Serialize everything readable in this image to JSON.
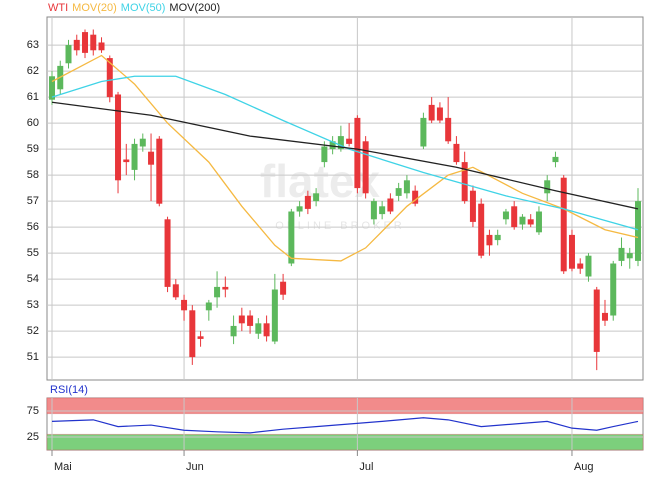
{
  "chart_data": [
    {
      "type": "candlestick",
      "legend": [
        {
          "name": "WTI",
          "color": "#e8363a"
        },
        {
          "name": "MOV(20)",
          "color": "#f5b942"
        },
        {
          "name": "MOV(50)",
          "color": "#3fd3e6"
        },
        {
          "name": "MOV(200)",
          "color": "#222222"
        }
      ],
      "watermark": "flatex",
      "watermark_sub": "ONLINE BROKER",
      "categories": [
        "Mai",
        null,
        null,
        null,
        null,
        null,
        null,
        null,
        null,
        null,
        null,
        null,
        null,
        null,
        null,
        null,
        "Jun",
        null,
        null,
        null,
        null,
        null,
        null,
        null,
        null,
        null,
        null,
        null,
        null,
        null,
        null,
        null,
        null,
        null,
        null,
        null,
        null,
        "Jul",
        null,
        null,
        null,
        null,
        null,
        null,
        null,
        null,
        null,
        null,
        null,
        null,
        null,
        null,
        null,
        null,
        null,
        null,
        null,
        null,
        null,
        null,
        null,
        null,
        null,
        "Aug",
        null,
        null,
        null,
        null,
        null,
        null,
        null,
        null
      ],
      "up_color": "#5cb85c",
      "down_color": "#e8363a",
      "series": [
        {
          "name": "WTI",
          "open": [
            60.9,
            61.3,
            62.3,
            63.2,
            63.5,
            63.4,
            63.1,
            62.5,
            61.1,
            58.6,
            58.2,
            59.1,
            58.9,
            59.4,
            56.3,
            53.8,
            53.2,
            52.8,
            51.8,
            52.8,
            53.3,
            53.7,
            51.8,
            52.6,
            52.6,
            51.9,
            52.3,
            51.6,
            53.9,
            54.6,
            56.6,
            57.2,
            57.0,
            58.5,
            59.0,
            59.0,
            59.4,
            60.2,
            59.3,
            56.3,
            56.5,
            57.1,
            57.2,
            57.3,
            57.4,
            59.1,
            60.7,
            60.6,
            60.2,
            59.2,
            58.5,
            57.4,
            56.9,
            55.7,
            55.5,
            56.3,
            56.8,
            56.1,
            56.3,
            55.8,
            57.3,
            58.5,
            57.9,
            55.7,
            54.6,
            54.1,
            53.6,
            52.7,
            52.6,
            54.7,
            54.8,
            54.7
          ],
          "high": [
            62.0,
            62.4,
            63.2,
            63.4,
            63.6,
            63.6,
            63.3,
            62.6,
            61.2,
            59.2,
            59.4,
            59.6,
            59.6,
            59.5,
            56.4,
            54.0,
            53.4,
            53.0,
            52.0,
            53.2,
            54.3,
            54.1,
            52.6,
            52.9,
            52.8,
            52.5,
            52.6,
            54.2,
            54.2,
            56.7,
            57.0,
            57.4,
            57.5,
            59.3,
            59.5,
            59.9,
            60.0,
            60.3,
            59.5,
            57.1,
            57.0,
            57.3,
            57.7,
            58.0,
            57.6,
            60.4,
            61.0,
            60.8,
            61.0,
            59.5,
            58.9,
            57.6,
            57.1,
            55.9,
            55.9,
            56.7,
            57.0,
            56.5,
            56.5,
            56.8,
            58.0,
            58.9,
            58.0,
            55.9,
            54.8,
            55.0,
            53.7,
            53.2,
            54.7,
            55.6,
            55.2,
            57.5
          ],
          "low": [
            60.7,
            61.1,
            62.1,
            62.6,
            62.5,
            62.6,
            62.7,
            60.8,
            57.3,
            58.0,
            57.8,
            58.9,
            57.0,
            56.8,
            53.5,
            53.2,
            52.4,
            50.7,
            51.4,
            52.4,
            52.9,
            53.3,
            51.5,
            52.0,
            51.9,
            51.7,
            51.6,
            51.5,
            53.2,
            54.5,
            56.4,
            56.5,
            56.8,
            58.3,
            58.8,
            58.9,
            59.1,
            57.3,
            57.1,
            56.1,
            56.3,
            56.5,
            57.0,
            57.1,
            56.8,
            59.0,
            60.0,
            60.0,
            59.2,
            58.4,
            56.9,
            56.0,
            54.8,
            54.9,
            55.3,
            56.1,
            55.9,
            55.9,
            56.0,
            55.7,
            57.0,
            58.3,
            54.2,
            54.3,
            54.2,
            53.9,
            50.5,
            52.2,
            52.4,
            54.5,
            54.4,
            54.5
          ],
          "close": [
            61.8,
            62.2,
            63.0,
            62.8,
            62.7,
            62.8,
            62.8,
            61.0,
            57.8,
            58.5,
            59.2,
            59.4,
            58.4,
            56.9,
            53.7,
            53.3,
            52.8,
            51.0,
            51.7,
            53.1,
            53.7,
            53.6,
            52.2,
            52.3,
            52.2,
            52.3,
            51.8,
            53.6,
            53.4,
            56.6,
            56.8,
            56.7,
            57.3,
            59.1,
            59.3,
            59.5,
            59.2,
            57.5,
            57.3,
            57.0,
            56.8,
            56.6,
            57.5,
            57.8,
            56.9,
            60.2,
            60.1,
            60.1,
            59.3,
            58.5,
            57.0,
            56.2,
            54.9,
            55.3,
            55.7,
            56.6,
            56.0,
            56.4,
            56.1,
            56.6,
            57.8,
            58.7,
            54.3,
            54.4,
            54.4,
            54.9,
            51.2,
            52.4,
            54.6,
            55.2,
            55.0,
            57.0
          ]
        }
      ],
      "lines": [
        {
          "name": "MOV(20)",
          "color": "#f5b942",
          "x": [
            0,
            6,
            10,
            14,
            19,
            23,
            27,
            29,
            35,
            38,
            43,
            48,
            51,
            57,
            62,
            67,
            71
          ],
          "values": [
            61.6,
            62.6,
            61.5,
            60.0,
            58.5,
            56.8,
            55.3,
            54.8,
            54.7,
            55.2,
            56.8,
            58.0,
            58.3,
            57.3,
            56.7,
            55.9,
            55.6
          ]
        },
        {
          "name": "MOV(50)",
          "color": "#3fd3e6",
          "x": [
            0,
            6,
            10,
            15,
            21,
            28,
            36,
            45,
            55,
            62,
            71
          ],
          "values": [
            61.0,
            61.6,
            61.8,
            61.8,
            61.1,
            60.1,
            59.0,
            58.1,
            57.2,
            56.7,
            55.9
          ]
        },
        {
          "name": "MOV(200)",
          "color": "#222222",
          "x": [
            0,
            12,
            24,
            37,
            49,
            61,
            71
          ],
          "values": [
            60.8,
            60.3,
            59.5,
            59.0,
            58.3,
            57.4,
            56.7
          ]
        }
      ],
      "ylim": [
        50.12,
        64.08
      ],
      "yticks": [
        51,
        52,
        53,
        54,
        55,
        56,
        57,
        58,
        59,
        60,
        61,
        62,
        63
      ],
      "grid": true
    },
    {
      "type": "line",
      "title": "RSI(14)",
      "color": "#2233cc",
      "x": [
        0,
        5,
        8,
        12,
        16,
        20,
        24,
        28,
        32,
        36,
        40,
        45,
        48,
        52,
        56,
        60,
        63,
        66,
        68,
        71
      ],
      "values": [
        55,
        58,
        45,
        48,
        38,
        35,
        33,
        40,
        45,
        50,
        55,
        62,
        58,
        45,
        50,
        55,
        42,
        38,
        45,
        55
      ],
      "bands": [
        {
          "from": 70,
          "to": 100,
          "color": "#f28b8b"
        },
        {
          "from": 0,
          "to": 30,
          "color": "#7ccf7c"
        }
      ],
      "ylim": [
        0,
        100
      ],
      "yticks": [
        25,
        75
      ]
    }
  ]
}
